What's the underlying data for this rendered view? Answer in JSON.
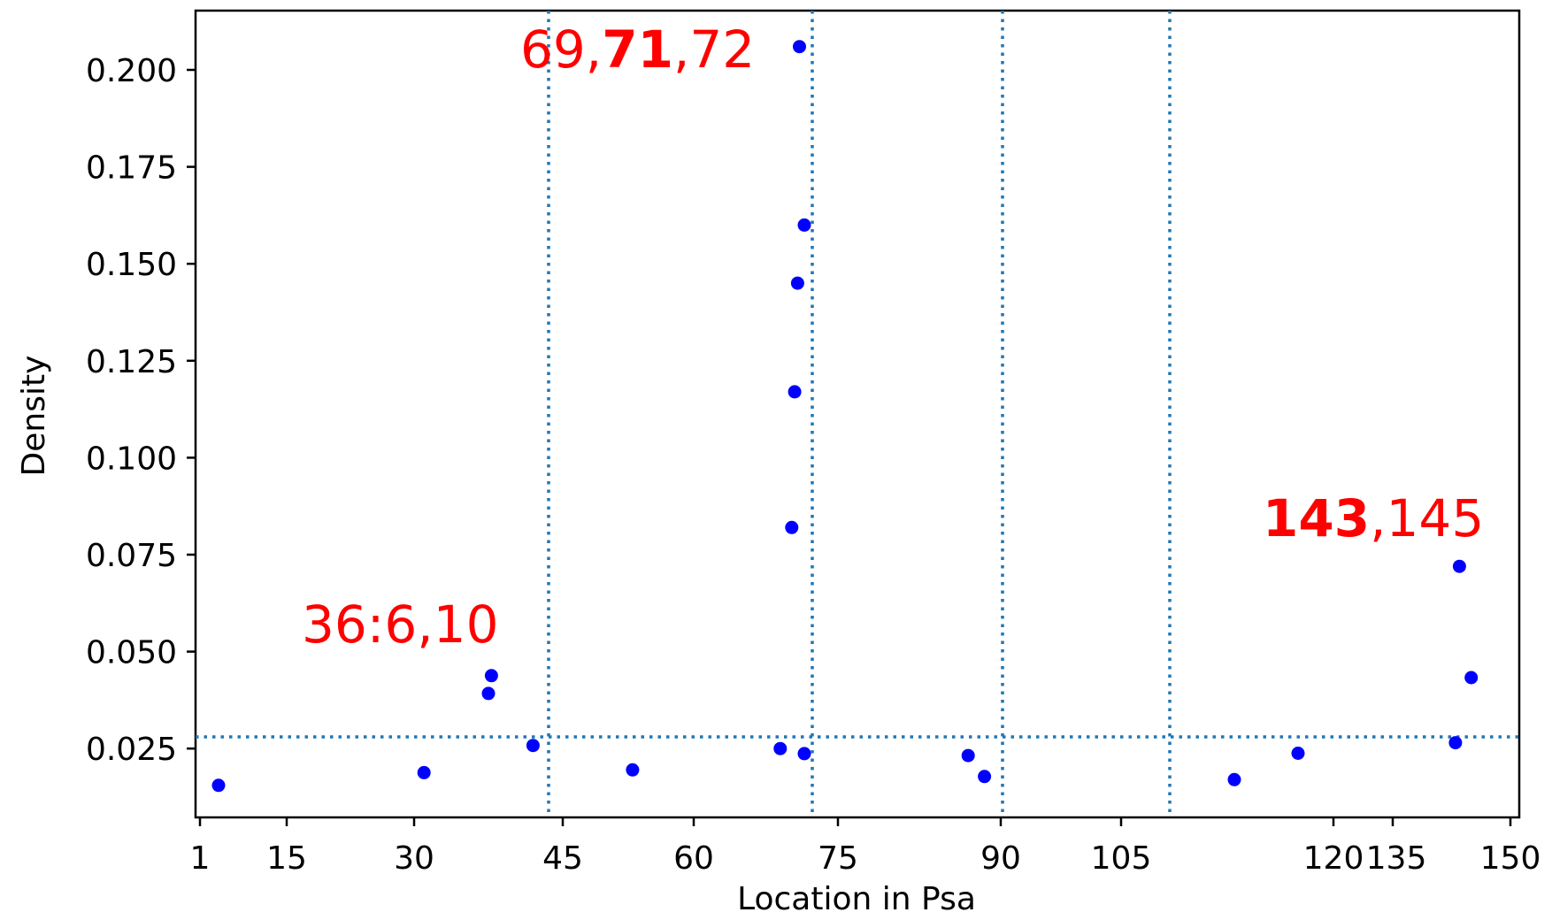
{
  "chart_data": {
    "type": "scatter",
    "title": "",
    "xlabel": "Location in Psa",
    "ylabel": "Density",
    "x_tick_labels": [
      "1",
      "15",
      "30",
      "45",
      "60",
      "75",
      "90",
      "105",
      "120",
      "135",
      "150"
    ],
    "y_tick_labels": [
      "0.025",
      "0.050",
      "0.075",
      "0.100",
      "0.125",
      "0.150",
      "0.175",
      "0.200"
    ],
    "y_ticks": [
      0.025,
      0.05,
      0.075,
      0.1,
      0.125,
      0.15,
      0.175,
      0.2
    ],
    "ylim": [
      0.0045,
      0.2165
    ],
    "grid": false,
    "legend": "none",
    "colors": {
      "points": "#0000ff",
      "reference_lines": "#1f77b4",
      "annotations": "#ff0000"
    },
    "reference_lines": {
      "horizontal_density": 0.028,
      "vertical_positions": [
        "43",
        "72",
        "90",
        "110"
      ]
    },
    "points": [
      {
        "pos": 4,
        "density": 0.0155
      },
      {
        "pos": 31,
        "density": 0.0188
      },
      {
        "pos": 37.5,
        "density": 0.0392
      },
      {
        "pos": 37.8,
        "density": 0.0438
      },
      {
        "pos": 42,
        "density": 0.0258
      },
      {
        "pos": 53,
        "density": 0.0195
      },
      {
        "pos": 69,
        "density": 0.025
      },
      {
        "pos": 70.2,
        "density": 0.082
      },
      {
        "pos": 70.5,
        "density": 0.117
      },
      {
        "pos": 70.8,
        "density": 0.145
      },
      {
        "pos": 71,
        "density": 0.206
      },
      {
        "pos": 71.5,
        "density": 0.16
      },
      {
        "pos": 71.5,
        "density": 0.0237
      },
      {
        "pos": 87,
        "density": 0.0232
      },
      {
        "pos": 88.5,
        "density": 0.0178
      },
      {
        "pos": 113,
        "density": 0.017
      },
      {
        "pos": 117.5,
        "density": 0.0238
      },
      {
        "pos": 143,
        "density": 0.0265
      },
      {
        "pos": 143.5,
        "density": 0.072
      },
      {
        "pos": 145,
        "density": 0.0433
      }
    ],
    "annotations": [
      {
        "text": "36:6,10",
        "at_pos": 37
      },
      {
        "parts": [
          {
            "text": "69,",
            "bold": false
          },
          {
            "text": "71",
            "bold": true
          },
          {
            "text": ",72",
            "bold": false
          }
        ],
        "at_pos": 71
      },
      {
        "parts": [
          {
            "text": "143",
            "bold": true
          },
          {
            "text": ",145",
            "bold": false
          }
        ],
        "at_pos": 143.5
      }
    ]
  }
}
